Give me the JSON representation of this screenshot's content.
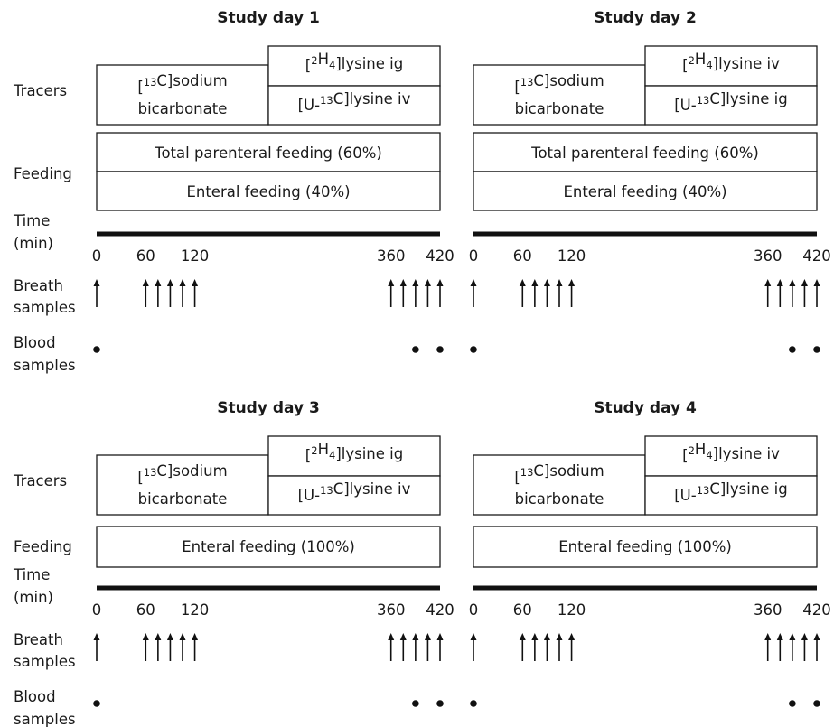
{
  "row_labels": {
    "tracers": "Tracers",
    "feeding": "Feeding",
    "time_line1": "Time",
    "time_line2": "(min)",
    "breath_line1": "Breath",
    "breath_line2": "samples",
    "blood_line1": "Blood",
    "blood_line2": "samples"
  },
  "time_ticks": [
    "0",
    "60",
    "120",
    "360",
    "420"
  ],
  "breath_sample_times": [
    0,
    60,
    75,
    90,
    105,
    120,
    360,
    375,
    390,
    405,
    420
  ],
  "blood_sample_times": [
    0,
    390,
    420
  ],
  "panels": [
    {
      "title": "Study day 1",
      "tracer_left_line1": "[13C]sodium",
      "tracer_left_line2": "bicarbonate",
      "tracer_top": "[2H4]lysine ig",
      "tracer_bottom": "[U-13C]lysine iv",
      "feeding": [
        "Total parenteral feeding (60%)",
        "Enteral feeding (40%)"
      ]
    },
    {
      "title": "Study day 2",
      "tracer_left_line1": "[13C]sodium",
      "tracer_left_line2": "bicarbonate",
      "tracer_top": "[2H4]lysine iv",
      "tracer_bottom": "[U-13C]lysine ig",
      "feeding": [
        "Total parenteral feeding (60%)",
        "Enteral feeding (40%)"
      ]
    },
    {
      "title": "Study day 3",
      "tracer_left_line1": "[13C]sodium",
      "tracer_left_line2": "bicarbonate",
      "tracer_top": "[2H4]lysine ig",
      "tracer_bottom": "[U-13C]lysine iv",
      "feeding": [
        "Enteral feeding (100%)"
      ]
    },
    {
      "title": "Study day 4",
      "tracer_left_line1": "[13C]sodium",
      "tracer_left_line2": "bicarbonate",
      "tracer_top": "[2H4]lysine iv",
      "tracer_bottom": "[U-13C]lysine ig",
      "feeding": [
        "Enteral feeding (100%)"
      ]
    }
  ]
}
